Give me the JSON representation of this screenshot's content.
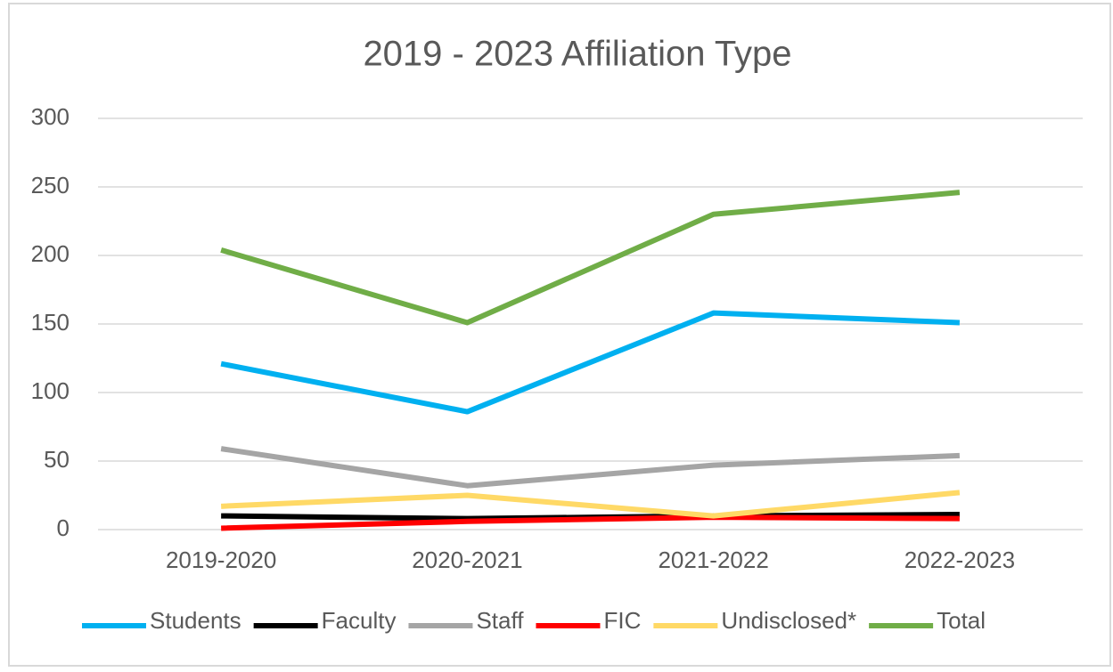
{
  "chart_data": {
    "type": "line",
    "title": "2019 - 2023 Affiliation Type",
    "categories": [
      "2019-2020",
      "2020-2021",
      "2021-2022",
      "2022-2023"
    ],
    "series": [
      {
        "name": "Students",
        "color": "#00b0f0",
        "values": [
          121,
          86,
          158,
          151
        ]
      },
      {
        "name": "Faculty",
        "color": "#000000",
        "values": [
          10,
          8,
          10,
          11
        ]
      },
      {
        "name": "Staff",
        "color": "#a5a5a5",
        "values": [
          59,
          32,
          47,
          54
        ]
      },
      {
        "name": "FIC",
        "color": "#ff0000",
        "values": [
          1,
          6,
          9,
          8
        ]
      },
      {
        "name": "Undisclosed*",
        "color": "#ffd966",
        "values": [
          17,
          25,
          10,
          27
        ]
      },
      {
        "name": "Total",
        "color": "#70ad47",
        "values": [
          204,
          151,
          230,
          246
        ]
      }
    ],
    "ylim": [
      0,
      300
    ],
    "yticks": [
      0,
      50,
      100,
      150,
      200,
      250,
      300
    ],
    "grid": true,
    "legend": "bottom"
  }
}
